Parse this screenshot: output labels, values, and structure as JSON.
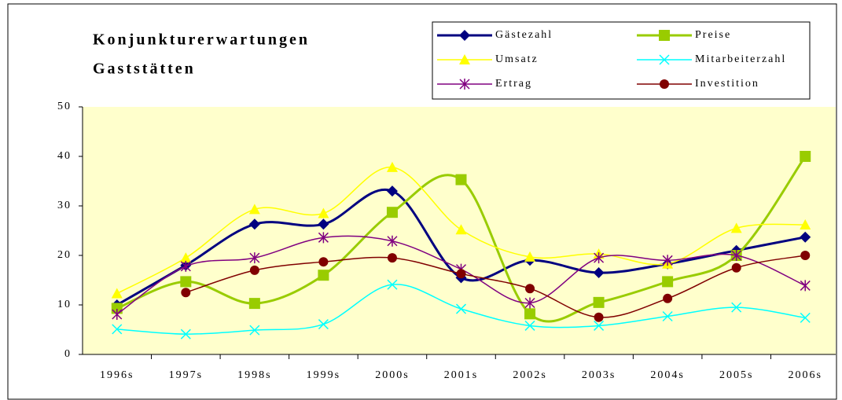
{
  "chart_data": {
    "type": "line",
    "title": [
      "Konjunkturerwartungen",
      "Gaststätten"
    ],
    "categories": [
      "1996s",
      "1997s",
      "1998s",
      "1999s",
      "2000s",
      "2001s",
      "2002s",
      "2003s",
      "2004s",
      "2005s",
      "2006s"
    ],
    "series": [
      {
        "name": "Gästezahl",
        "color": "#000080",
        "marker": "diamond",
        "values": [
          10,
          18,
          26.3,
          26.3,
          33,
          15.5,
          19,
          16.5,
          18.3,
          21,
          23.7
        ]
      },
      {
        "name": "Preise",
        "color": "#99cc00",
        "marker": "square",
        "values": [
          9.3,
          14.7,
          10.3,
          16,
          28.7,
          35.3,
          8.2,
          10.5,
          14.7,
          20,
          40
        ]
      },
      {
        "name": "Umsatz",
        "color": "#ffff00",
        "marker": "triangle",
        "values": [
          12.3,
          19.5,
          29.3,
          28.5,
          37.8,
          25.2,
          19.7,
          20.3,
          18.3,
          25.5,
          26.2
        ]
      },
      {
        "name": "Mitarbeiterzahl",
        "color": "#00ffff",
        "marker": "x",
        "values": [
          5.1,
          4.1,
          4.9,
          6.1,
          14.1,
          9.2,
          5.8,
          5.8,
          7.7,
          9.5,
          7.4
        ]
      },
      {
        "name": "Ertrag",
        "color": "#800080",
        "marker": "star",
        "values": [
          8.1,
          17.8,
          19.5,
          23.6,
          22.9,
          17.2,
          10.4,
          19.5,
          19,
          20,
          13.9
        ]
      },
      {
        "name": "Investition",
        "color": "#800000",
        "marker": "circle",
        "values": [
          null,
          12.5,
          17,
          18.7,
          19.5,
          16.3,
          13.3,
          7.5,
          11.3,
          17.5,
          20
        ]
      }
    ],
    "ylim": [
      0,
      50
    ],
    "yticks": [
      0,
      10,
      20,
      30,
      40,
      50
    ],
    "grid": false
  }
}
